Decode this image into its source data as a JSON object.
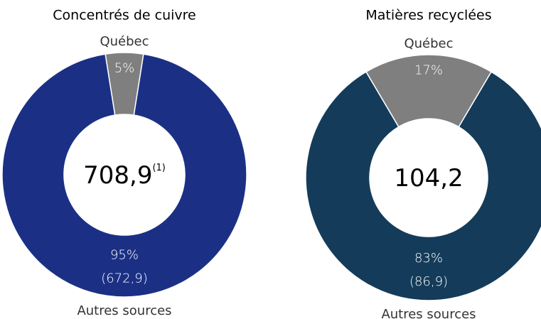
{
  "chart_data": [
    {
      "type": "pie",
      "title": "Concentrés de cuivre",
      "center_label": "708,9",
      "center_note": "(1)",
      "categories": [
        "Québec",
        "Autres sources"
      ],
      "values": [
        5,
        95
      ],
      "value_labels": [
        "5%",
        "95%"
      ],
      "amount_labels": [
        null,
        "(672,9)"
      ],
      "colors": [
        "#7f7f7f",
        "#1b3085"
      ]
    },
    {
      "type": "pie",
      "title": "Matières recyclées",
      "center_label": "104,2",
      "categories": [
        "Québec",
        "Autres sources"
      ],
      "values": [
        17,
        83
      ],
      "value_labels": [
        "17%",
        "83%"
      ],
      "amount_labels": [
        null,
        "(86,9)"
      ],
      "colors": [
        "#7f7f7f",
        "#143c5a"
      ]
    }
  ]
}
